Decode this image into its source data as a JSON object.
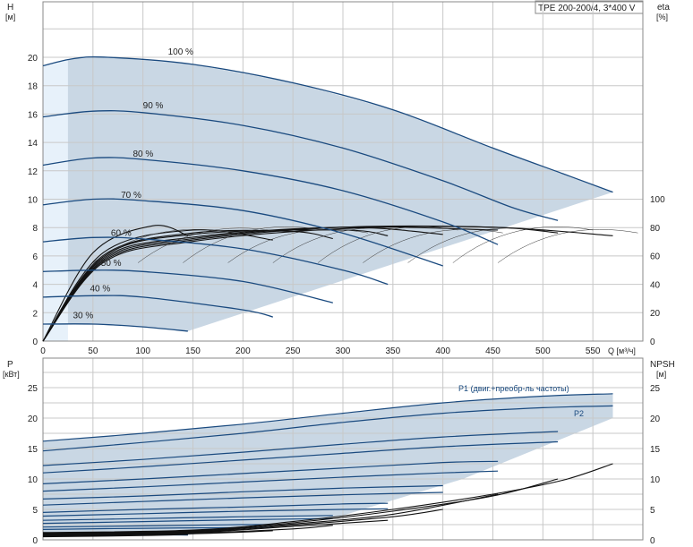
{
  "model_label": "TPE 200-200/4, 3*400 V",
  "colors": {
    "grid": "#c8c8c8",
    "envelope": "#c9d7e4",
    "envelope_light": "#e7f1fa",
    "curve": "#1a4a7f",
    "black": "#111111"
  },
  "top": {
    "y_left_label_1": "H",
    "y_left_label_2": "[м]",
    "y_right_label_1": "eta",
    "y_right_label_2": "[%]",
    "x_label": "Q [м³/ч]",
    "y_ticks": [
      "0",
      "2",
      "4",
      "6",
      "8",
      "10",
      "12",
      "14",
      "16",
      "18",
      "20"
    ],
    "eta_ticks": [
      "0",
      "20",
      "40",
      "60",
      "80",
      "100"
    ],
    "x_ticks": [
      "0",
      "50",
      "100",
      "150",
      "200",
      "250",
      "300",
      "350",
      "400",
      "450",
      "500",
      "550"
    ]
  },
  "bottom": {
    "y_left_label_1": "P",
    "y_left_label_2": "[кВт]",
    "y_right_label_1": "NPSH",
    "y_right_label_2": "[м]",
    "y_ticks": [
      "0",
      "5",
      "10",
      "15",
      "20",
      "25"
    ],
    "p1_label": "P1 (двиг.+преобр-ль частоты)",
    "p2_label": "P2"
  },
  "chart_data": [
    {
      "type": "line",
      "title": "",
      "xlabel": "Q [м³/ч]",
      "ylabel": "H [м]",
      "y2label": "eta [%]",
      "xlim": [
        0,
        600
      ],
      "ylim": [
        0,
        22
      ],
      "y2lim": [
        0,
        100
      ],
      "grid": true,
      "head_curves": [
        {
          "name": "100 %",
          "qmax": 570,
          "points": [
            [
              0,
              19.4
            ],
            [
              30,
              19.9
            ],
            [
              65,
              20.0
            ],
            [
              150,
              19.5
            ],
            [
              250,
              18.2
            ],
            [
              350,
              16.3
            ],
            [
              450,
              13.6
            ],
            [
              520,
              11.8
            ],
            [
              570,
              10.5
            ]
          ]
        },
        {
          "name": "90 %",
          "qmax": 515,
          "points": [
            [
              0,
              15.8
            ],
            [
              50,
              16.2
            ],
            [
              100,
              16.1
            ],
            [
              200,
              15.2
            ],
            [
              300,
              13.6
            ],
            [
              400,
              11.3
            ],
            [
              470,
              9.4
            ],
            [
              515,
              8.5
            ]
          ]
        },
        {
          "name": "80 %",
          "qmax": 455,
          "points": [
            [
              0,
              12.4
            ],
            [
              50,
              12.9
            ],
            [
              100,
              12.8
            ],
            [
              200,
              12.0
            ],
            [
              300,
              10.6
            ],
            [
              400,
              8.4
            ],
            [
              455,
              6.8
            ]
          ]
        },
        {
          "name": "70 %",
          "qmax": 400,
          "points": [
            [
              0,
              9.6
            ],
            [
              50,
              10.0
            ],
            [
              100,
              9.9
            ],
            [
              200,
              9.2
            ],
            [
              300,
              7.6
            ],
            [
              400,
              5.3
            ]
          ]
        },
        {
          "name": "60 %",
          "qmax": 345,
          "points": [
            [
              0,
              7.0
            ],
            [
              50,
              7.3
            ],
            [
              100,
              7.2
            ],
            [
              200,
              6.5
            ],
            [
              300,
              5.0
            ],
            [
              345,
              4.0
            ]
          ]
        },
        {
          "name": "50 %",
          "qmax": 290,
          "points": [
            [
              0,
              4.9
            ],
            [
              50,
              5.0
            ],
            [
              100,
              4.9
            ],
            [
              200,
              4.2
            ],
            [
              290,
              2.7
            ]
          ]
        },
        {
          "name": "40 %",
          "qmax": 230,
          "points": [
            [
              0,
              3.1
            ],
            [
              50,
              3.2
            ],
            [
              100,
              3.1
            ],
            [
              200,
              2.2
            ],
            [
              230,
              1.7
            ]
          ]
        },
        {
          "name": "30 %",
          "qmax": 145,
          "points": [
            [
              0,
              1.2
            ],
            [
              50,
              1.2
            ],
            [
              100,
              1.0
            ],
            [
              145,
              0.7
            ]
          ]
        }
      ],
      "efficiency_curves": [
        {
          "points": [
            [
              0,
              0
            ],
            [
              60,
              55
            ],
            [
              150,
              70
            ],
            [
              300,
              79
            ],
            [
              450,
              80
            ],
            [
              570,
              74
            ]
          ]
        },
        {
          "points": [
            [
              0,
              0
            ],
            [
              60,
              56
            ],
            [
              150,
              71
            ],
            [
              300,
              80
            ],
            [
              450,
              80
            ],
            [
              515,
              76
            ]
          ]
        },
        {
          "points": [
            [
              0,
              0
            ],
            [
              60,
              57
            ],
            [
              150,
              72
            ],
            [
              300,
              80
            ],
            [
              455,
              78
            ]
          ]
        },
        {
          "points": [
            [
              0,
              0
            ],
            [
              60,
              58
            ],
            [
              150,
              73
            ],
            [
              300,
              80
            ],
            [
              400,
              75
            ]
          ]
        },
        {
          "points": [
            [
              0,
              0
            ],
            [
              60,
              59
            ],
            [
              150,
              75
            ],
            [
              300,
              78
            ],
            [
              345,
              74
            ]
          ]
        },
        {
          "points": [
            [
              0,
              0
            ],
            [
              60,
              60
            ],
            [
              150,
              76
            ],
            [
              250,
              77
            ],
            [
              290,
              72
            ]
          ]
        },
        {
          "points": [
            [
              0,
              0
            ],
            [
              60,
              62
            ],
            [
              150,
              78
            ],
            [
              230,
              71
            ]
          ]
        },
        {
          "points": [
            [
              0,
              0
            ],
            [
              50,
              62
            ],
            [
              110,
              81
            ],
            [
              145,
              74
            ]
          ]
        }
      ]
    },
    {
      "type": "line",
      "title": "",
      "xlabel": "Q [м³/ч]",
      "ylabel": "P [кВт]",
      "y2label": "NPSH [м]",
      "xlim": [
        0,
        600
      ],
      "ylim": [
        0,
        28
      ],
      "y2lim": [
        0,
        28
      ],
      "grid": true,
      "power_curves": [
        {
          "name": "P1 (двиг.+преобр-ль частоты)",
          "qmax": 570,
          "points": [
            [
              0,
              16.2
            ],
            [
              100,
              17.5
            ],
            [
              200,
              19.0
            ],
            [
              300,
              20.8
            ],
            [
              400,
              22.5
            ],
            [
              500,
              23.6
            ],
            [
              570,
              24.0
            ]
          ]
        },
        {
          "name": "P2",
          "qmax": 570,
          "points": [
            [
              0,
              14.6
            ],
            [
              100,
              16.0
            ],
            [
              200,
              17.5
            ],
            [
              300,
              19.3
            ],
            [
              400,
              20.8
            ],
            [
              500,
              21.7
            ],
            [
              570,
              22.0
            ]
          ]
        },
        {
          "points": [
            [
              0,
              12.2
            ],
            [
              100,
              13.2
            ],
            [
              200,
              14.4
            ],
            [
              300,
              15.7
            ],
            [
              400,
              16.9
            ],
            [
              515,
              17.8
            ]
          ]
        },
        {
          "points": [
            [
              0,
              11.0
            ],
            [
              100,
              12.0
            ],
            [
              200,
              13.1
            ],
            [
              300,
              14.2
            ],
            [
              400,
              15.3
            ],
            [
              515,
              16.1
            ]
          ]
        },
        {
          "points": [
            [
              0,
              9.2
            ],
            [
              100,
              10.0
            ],
            [
              200,
              10.9
            ],
            [
              300,
              11.8
            ],
            [
              400,
              12.7
            ],
            [
              455,
              12.9
            ]
          ]
        },
        {
          "points": [
            [
              0,
              8.0
            ],
            [
              100,
              8.7
            ],
            [
              200,
              9.5
            ],
            [
              300,
              10.3
            ],
            [
              400,
              11.0
            ],
            [
              455,
              11.3
            ]
          ]
        },
        {
          "points": [
            [
              0,
              6.7
            ],
            [
              100,
              7.2
            ],
            [
              200,
              7.9
            ],
            [
              300,
              8.5
            ],
            [
              400,
              8.9
            ]
          ]
        },
        {
          "points": [
            [
              0,
              5.7
            ],
            [
              100,
              6.3
            ],
            [
              200,
              6.9
            ],
            [
              300,
              7.4
            ],
            [
              400,
              7.8
            ]
          ]
        },
        {
          "points": [
            [
              0,
              4.5
            ],
            [
              100,
              5.0
            ],
            [
              200,
              5.4
            ],
            [
              300,
              5.9
            ],
            [
              345,
              6.0
            ]
          ]
        },
        {
          "points": [
            [
              0,
              3.9
            ],
            [
              100,
              4.3
            ],
            [
              200,
              4.7
            ],
            [
              300,
              5.0
            ],
            [
              345,
              5.1
            ]
          ]
        },
        {
          "points": [
            [
              0,
              3.2
            ],
            [
              100,
              3.5
            ],
            [
              200,
              3.8
            ],
            [
              290,
              4.0
            ]
          ]
        },
        {
          "points": [
            [
              0,
              2.7
            ],
            [
              100,
              3.0
            ],
            [
              200,
              3.3
            ],
            [
              290,
              3.5
            ]
          ]
        },
        {
          "points": [
            [
              0,
              2.1
            ],
            [
              100,
              2.3
            ],
            [
              200,
              2.5
            ],
            [
              230,
              2.5
            ]
          ]
        },
        {
          "points": [
            [
              0,
              1.7
            ],
            [
              100,
              1.9
            ],
            [
              200,
              2.0
            ],
            [
              230,
              2.1
            ]
          ]
        },
        {
          "points": [
            [
              0,
              0.9
            ],
            [
              100,
              1.0
            ],
            [
              145,
              1.0
            ]
          ]
        },
        {
          "points": [
            [
              0,
              0.7
            ],
            [
              100,
              0.8
            ],
            [
              145,
              0.8
            ]
          ]
        }
      ],
      "npsh_curves": [
        {
          "points": [
            [
              0,
              1.2
            ],
            [
              150,
              1.6
            ],
            [
              250,
              3.0
            ],
            [
              350,
              5.0
            ],
            [
              450,
              7.5
            ],
            [
              520,
              9.8
            ],
            [
              570,
              12.5
            ]
          ]
        },
        {
          "points": [
            [
              0,
              1.1
            ],
            [
              150,
              1.5
            ],
            [
              250,
              2.8
            ],
            [
              350,
              4.7
            ],
            [
              450,
              7.2
            ],
            [
              515,
              10.0
            ]
          ]
        },
        {
          "points": [
            [
              0,
              1.0
            ],
            [
              150,
              1.4
            ],
            [
              250,
              2.6
            ],
            [
              350,
              4.2
            ],
            [
              455,
              7.5
            ]
          ]
        },
        {
          "points": [
            [
              0,
              0.9
            ],
            [
              150,
              1.3
            ],
            [
              250,
              2.4
            ],
            [
              350,
              3.8
            ],
            [
              400,
              5.0
            ]
          ]
        },
        {
          "points": [
            [
              0,
              0.8
            ],
            [
              150,
              1.2
            ],
            [
              250,
              2.2
            ],
            [
              345,
              3.2
            ]
          ]
        },
        {
          "points": [
            [
              0,
              0.7
            ],
            [
              150,
              1.1
            ],
            [
              250,
              1.8
            ],
            [
              290,
              2.4
            ]
          ]
        },
        {
          "points": [
            [
              0,
              0.6
            ],
            [
              150,
              1.0
            ],
            [
              230,
              1.5
            ]
          ]
        },
        {
          "points": [
            [
              0,
              0.5
            ],
            [
              100,
              0.7
            ],
            [
              145,
              0.9
            ]
          ]
        }
      ]
    }
  ]
}
